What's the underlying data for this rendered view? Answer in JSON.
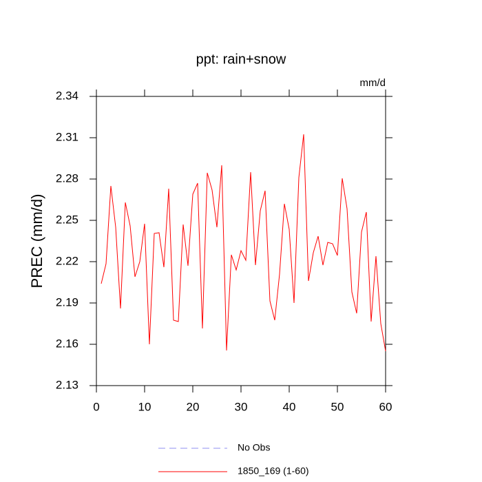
{
  "chart_data": {
    "type": "line",
    "title": "ppt: rain+snow",
    "units": "mm/d",
    "y_label": "PREC  (mm/d)",
    "x": [
      1,
      2,
      3,
      4,
      5,
      6,
      7,
      8,
      9,
      10,
      11,
      12,
      13,
      14,
      15,
      16,
      17,
      18,
      19,
      20,
      21,
      22,
      23,
      24,
      25,
      26,
      27,
      28,
      29,
      30,
      31,
      32,
      33,
      34,
      35,
      36,
      37,
      38,
      39,
      40,
      41,
      42,
      43,
      44,
      45,
      46,
      47,
      48,
      49,
      50,
      51,
      52,
      53,
      54,
      55,
      56,
      57,
      58,
      59,
      60
    ],
    "series": [
      {
        "name": "No Obs",
        "color": "#8c8cf0",
        "dashed": true,
        "values": [
          null,
          null,
          null,
          null,
          null,
          null,
          null,
          null,
          null,
          null,
          null,
          null,
          null,
          null,
          null,
          null,
          null,
          null,
          null,
          null,
          null,
          null,
          null,
          null,
          null,
          null,
          null,
          null,
          null,
          null,
          null,
          null,
          null,
          null,
          null,
          null,
          null,
          null,
          null,
          null,
          null,
          null,
          null,
          null,
          null,
          null,
          null,
          null,
          null,
          null,
          null,
          null,
          null,
          null,
          null,
          null,
          null,
          null,
          null,
          null
        ]
      },
      {
        "name": "1850_169 (1-60)",
        "color": "#ff0000",
        "dashed": false,
        "values": [
          2.204,
          2.2185,
          2.275,
          2.245,
          2.186,
          2.263,
          2.246,
          2.209,
          2.22,
          2.2475,
          2.16,
          2.2405,
          2.241,
          2.216,
          2.273,
          2.1775,
          2.1765,
          2.247,
          2.217,
          2.269,
          2.277,
          2.1715,
          2.2845,
          2.272,
          2.245,
          2.29,
          2.1555,
          2.225,
          2.214,
          2.228,
          2.221,
          2.285,
          2.2175,
          2.257,
          2.2715,
          2.1915,
          2.1775,
          2.211,
          2.262,
          2.2435,
          2.19,
          2.281,
          2.3125,
          2.206,
          2.2265,
          2.2385,
          2.2175,
          2.234,
          2.233,
          2.2245,
          2.2805,
          2.2585,
          2.198,
          2.1825,
          2.2415,
          2.256,
          2.1765,
          2.224,
          2.175,
          2.155
        ]
      }
    ],
    "xlim": [
      0,
      60
    ],
    "xticks": [
      0,
      10,
      20,
      30,
      40,
      50,
      60
    ],
    "ylim": [
      2.13,
      2.34
    ],
    "yticks": [
      2.13,
      2.16,
      2.19,
      2.22,
      2.25,
      2.28,
      2.31,
      2.34
    ]
  }
}
